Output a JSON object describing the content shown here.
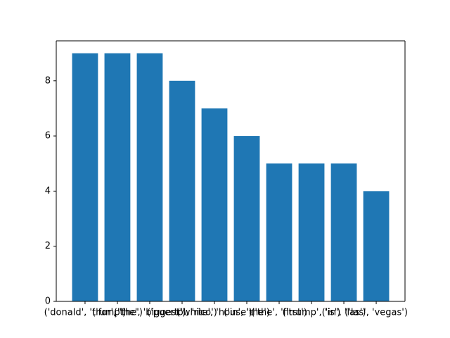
{
  "chart_data": {
    "type": "bar",
    "categories": [
      "('donald', 'trump')",
      "('for', 'the')",
      "('the', 'biggest')",
      "('puerto', 'rico')",
      "('white', 'house')",
      "('in', 'the')",
      "('the', 'first')",
      "('trump', 'is')",
      "('in', 'las')",
      "('las', 'vegas')"
    ],
    "category_labels_shown": [
      "('donald', 'trump')",
      "('for', 'the')",
      "('the', 'biggest')",
      "('puerto', 'rico')",
      "('white', 'house')",
      "('in', 'the')",
      "('the', 'first')",
      "('trump', 'is')",
      "('in', 'las')",
      "('las', 'vegas')"
    ],
    "values": [
      9,
      9,
      9,
      8,
      7,
      6,
      5,
      5,
      5,
      4
    ],
    "color": "#1f77b4",
    "title": "",
    "xlabel": "",
    "ylabel": "",
    "ylim": [
      0,
      9.45
    ],
    "yticks": [
      0,
      2,
      4,
      6,
      8
    ],
    "grid": false
  }
}
